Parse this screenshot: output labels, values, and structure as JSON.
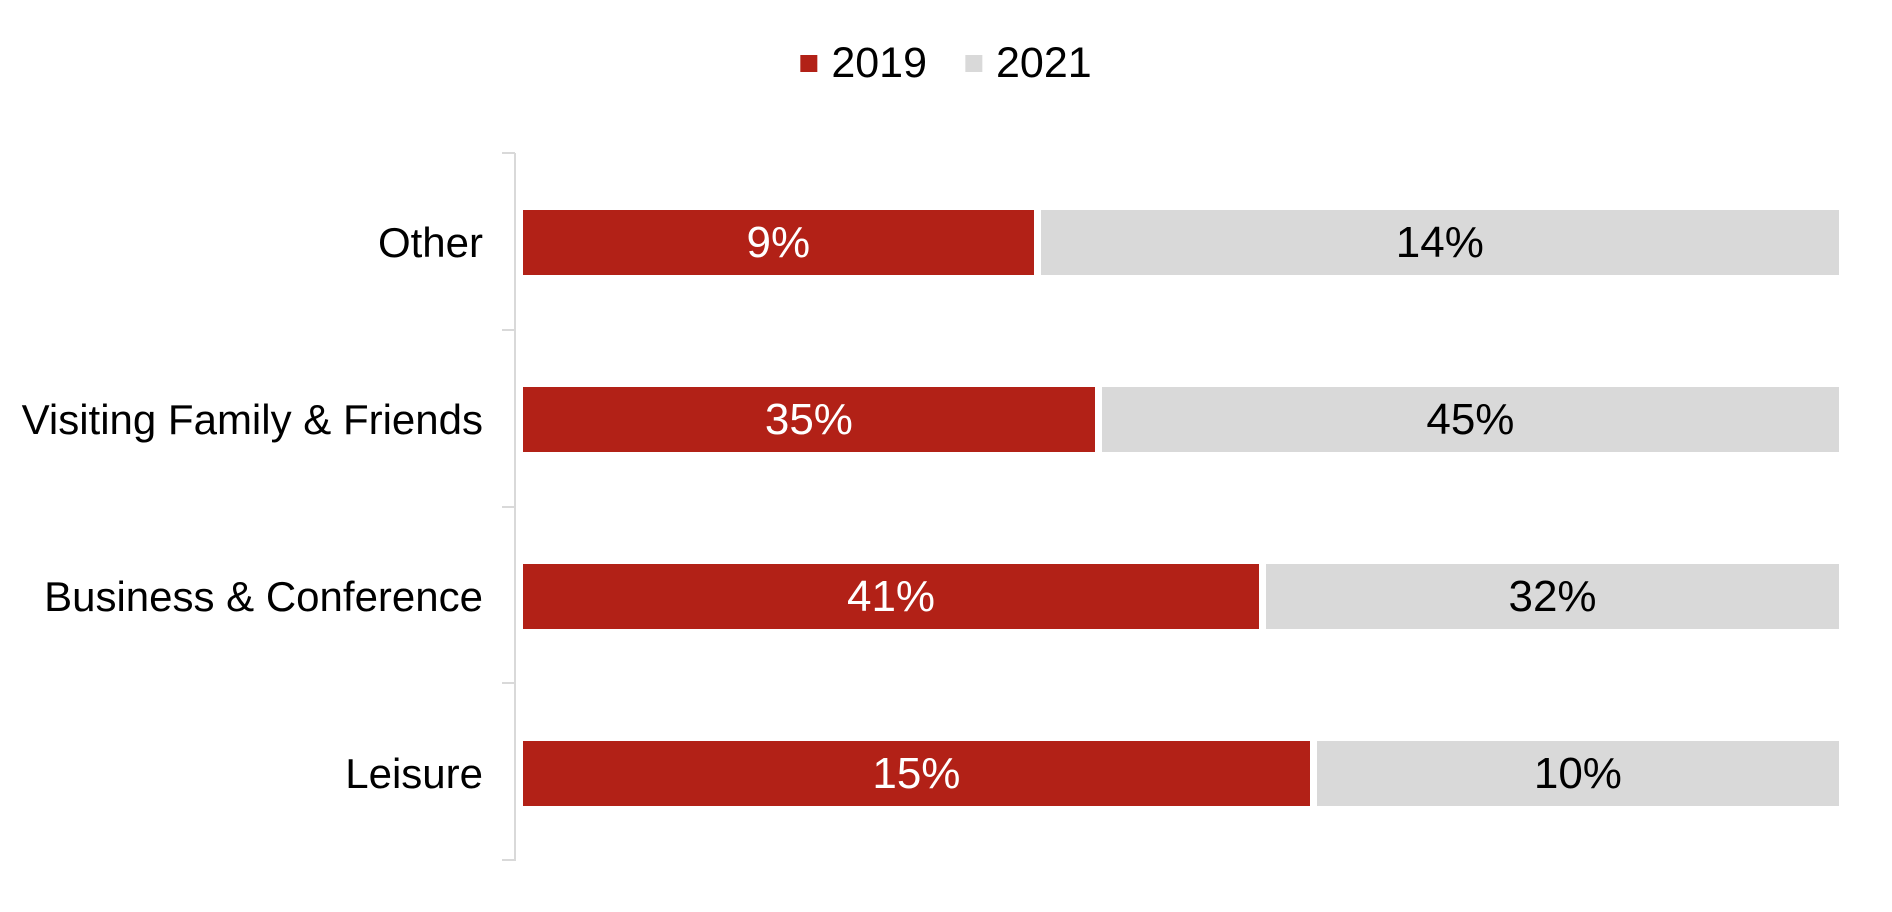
{
  "chart_data": {
    "type": "bar",
    "variant": "100% stacked horizontal",
    "title": "",
    "categories": [
      "Other",
      "Visiting Family & Friends",
      "Business & Conference",
      "Leisure"
    ],
    "series": [
      {
        "name": "2019",
        "color": "#B22117",
        "label_color": "#FFFFFF",
        "values": [
          9,
          35,
          41,
          15
        ],
        "data_labels": [
          "9%",
          "35%",
          "41%",
          "15%"
        ]
      },
      {
        "name": "2021",
        "color": "#D9D9D9",
        "label_color": "#000000",
        "values": [
          14,
          45,
          32,
          10
        ],
        "data_labels": [
          "14%",
          "45%",
          "32%",
          "10%"
        ]
      }
    ],
    "legend_position": "top-center",
    "axis_color": "#D9D9D9",
    "gridlines": false,
    "data_label_format": "percent",
    "segment_width_rule": "segment width proportional to value / (2019 value + 2021 value)"
  }
}
